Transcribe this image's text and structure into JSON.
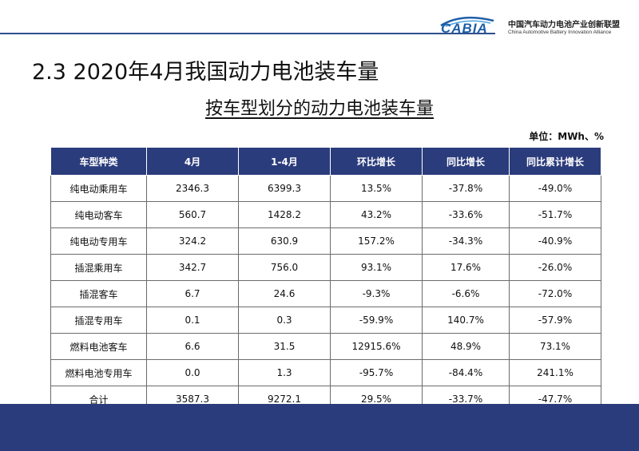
{
  "header": {
    "logo_text": "CABIA",
    "org_name_cn": "中国汽车动力电池产业创新联盟",
    "org_name_en": "China Automotive Battery Innovation Alliance"
  },
  "slide": {
    "title": "2.3 2020年4月我国动力电池装车量",
    "subtitle": "按车型划分的动力电池装车量",
    "unit": "单位：MWh、%"
  },
  "table": {
    "headers": [
      "车型种类",
      "4月",
      "1-4月",
      "环比增长",
      "同比增长",
      "同比累计增长"
    ],
    "rows": [
      [
        "纯电动乘用车",
        "2346.3",
        "6399.3",
        "13.5%",
        "-37.8%",
        "-49.0%"
      ],
      [
        "纯电动客车",
        "560.7",
        "1428.2",
        "43.2%",
        "-33.6%",
        "-51.7%"
      ],
      [
        "纯电动专用车",
        "324.2",
        "630.9",
        "157.2%",
        "-34.3%",
        "-40.9%"
      ],
      [
        "插混乘用车",
        "342.7",
        "756.0",
        "93.1%",
        "17.6%",
        "-26.0%"
      ],
      [
        "插混客车",
        "6.7",
        "24.6",
        "-9.3%",
        "-6.6%",
        "-72.0%"
      ],
      [
        "插混专用车",
        "0.1",
        "0.3",
        "-59.9%",
        "140.7%",
        "-57.9%"
      ],
      [
        "燃料电池客车",
        "6.6",
        "31.5",
        "12915.6%",
        "48.9%",
        "73.1%"
      ],
      [
        "燃料电池专用车",
        "0.0",
        "1.3",
        "-95.7%",
        "-84.4%",
        "241.1%"
      ],
      [
        "合计",
        "3587.3",
        "9272.1",
        "29.5%",
        "-33.7%",
        "-47.7%"
      ]
    ]
  },
  "colors": {
    "header_bg": "#2b3c7c",
    "accent": "#1f5fa8"
  }
}
